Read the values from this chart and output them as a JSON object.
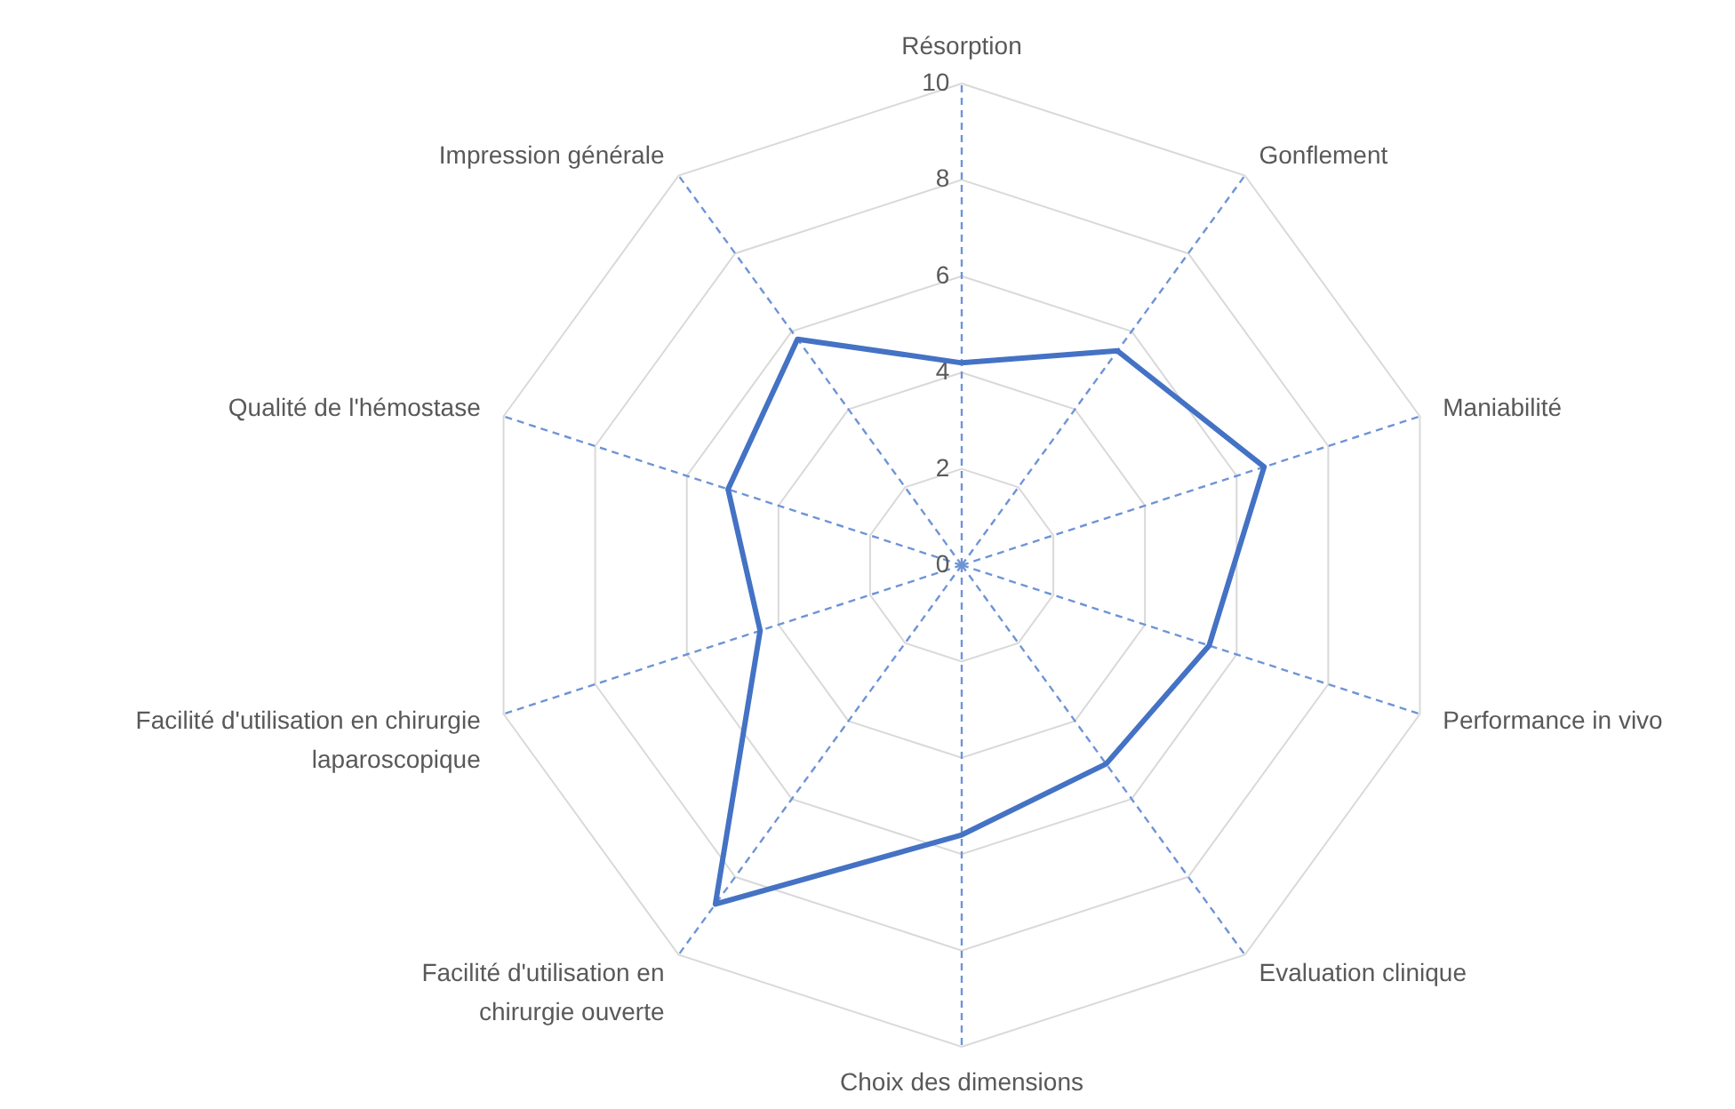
{
  "chart_data": {
    "type": "radar",
    "categories": [
      "Résorption",
      "Gonflement",
      "Maniabilité",
      "Performance in vivo",
      "Evaluation clinique",
      "Choix des dimensions",
      "Facilité d'utilisation en chirurgie ouverte",
      "Facilité d'utilisation en chirurgie laparoscopique",
      "Qualité de l'hémostase",
      "Impression générale"
    ],
    "series": [
      {
        "color": "#4472c4",
        "values": [
          4.2,
          5.5,
          6.6,
          5.4,
          5.1,
          5.6,
          8.7,
          4.4,
          5.1,
          5.8
        ]
      }
    ],
    "ylim": [
      0,
      10
    ],
    "yticks": [
      0,
      2,
      4,
      6,
      8,
      10
    ],
    "grid": true
  }
}
